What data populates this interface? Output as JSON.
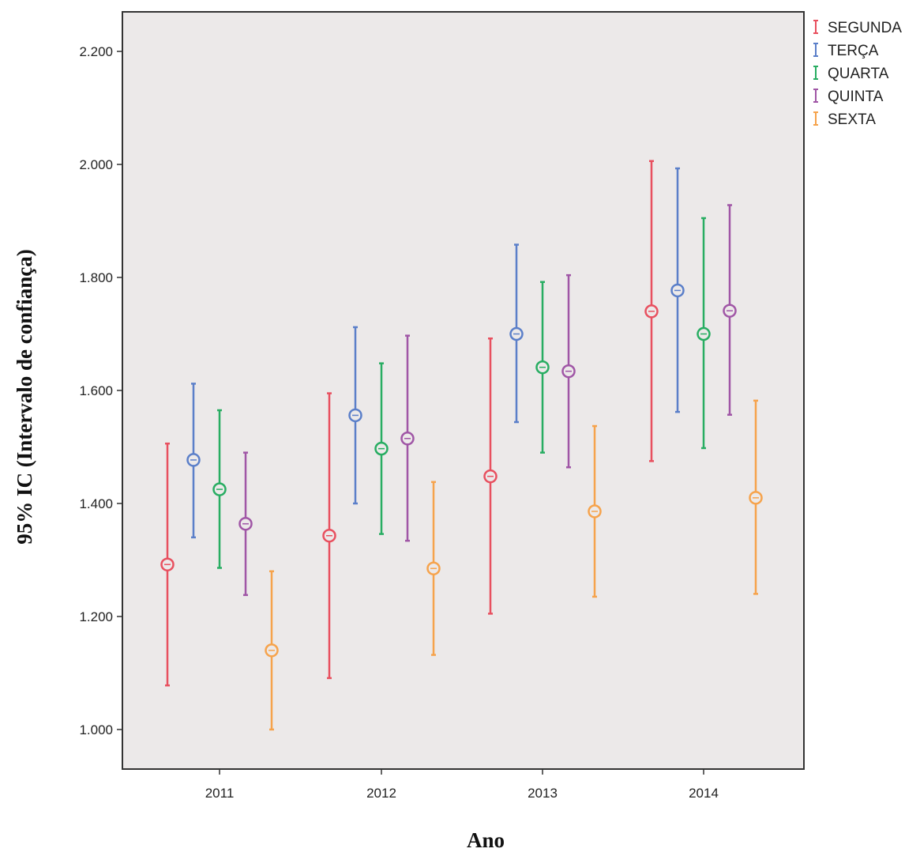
{
  "chart_data": {
    "type": "errorbar",
    "xlabel": "Ano",
    "ylabel": "95% IC (Intervalo de confiança)",
    "categories": [
      "2011",
      "2012",
      "2013",
      "2014"
    ],
    "ylim": [
      0.93,
      2.27
    ],
    "yticks": [
      1.0,
      1.2,
      1.4,
      1.6,
      1.8,
      2.0,
      2.2
    ],
    "ytick_labels": [
      "1.000",
      "1.200",
      "1.400",
      "1.600",
      "1.800",
      "2.000",
      "2.200"
    ],
    "grid": false,
    "legend_position": "top-right, outside plot area",
    "plot_background": "#ece9e9",
    "series": [
      {
        "name": "SEGUNDA",
        "color": "#e8505f",
        "mean": [
          1.292,
          1.343,
          1.448,
          1.74
        ],
        "lower": [
          1.078,
          1.091,
          1.205,
          1.475
        ],
        "upper": [
          1.506,
          1.595,
          1.692,
          2.006
        ]
      },
      {
        "name": "TERÇA",
        "color": "#5b7fc9",
        "mean": [
          1.477,
          1.556,
          1.7,
          1.777
        ],
        "lower": [
          1.34,
          1.4,
          1.544,
          1.562
        ],
        "upper": [
          1.612,
          1.712,
          1.858,
          1.993
        ]
      },
      {
        "name": "QUARTA",
        "color": "#28ad62",
        "mean": [
          1.425,
          1.497,
          1.641,
          1.7
        ],
        "lower": [
          1.286,
          1.346,
          1.49,
          1.498
        ],
        "upper": [
          1.565,
          1.648,
          1.792,
          1.905
        ]
      },
      {
        "name": "QUINTA",
        "color": "#a056a6",
        "mean": [
          1.364,
          1.515,
          1.634,
          1.741
        ],
        "lower": [
          1.238,
          1.334,
          1.464,
          1.557
        ],
        "upper": [
          1.49,
          1.697,
          1.804,
          1.928
        ]
      },
      {
        "name": "SEXTA",
        "color": "#f6a34c",
        "mean": [
          1.14,
          1.285,
          1.386,
          1.41
        ],
        "lower": [
          1.0,
          1.132,
          1.235,
          1.24
        ],
        "upper": [
          1.28,
          1.438,
          1.537,
          1.582
        ]
      }
    ]
  }
}
